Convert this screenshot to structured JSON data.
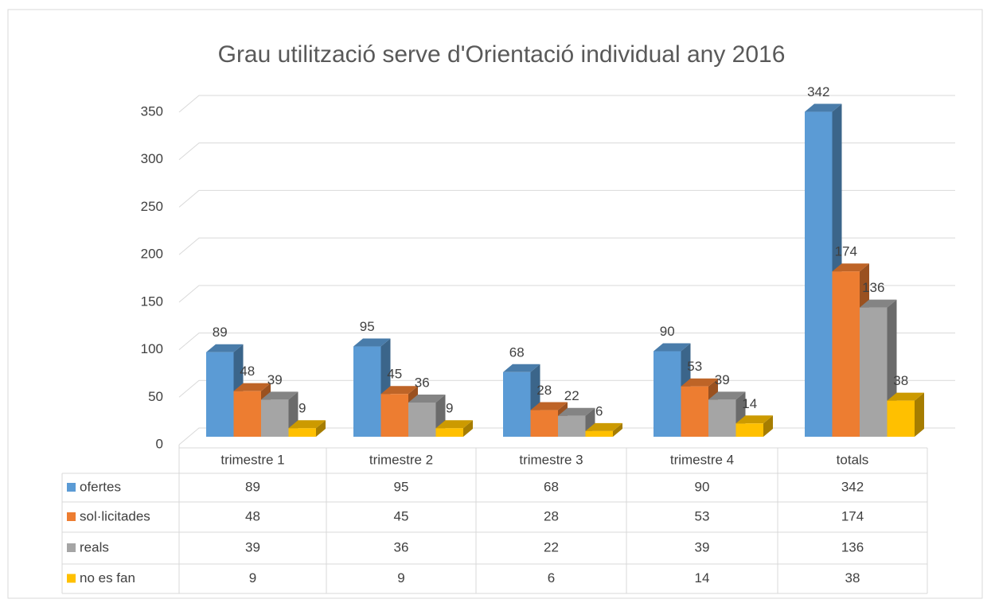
{
  "chart_data": {
    "type": "bar3d",
    "title": "Grau utilització serve d'Orientació individual any 2016",
    "categories": [
      "trimestre 1",
      "trimestre 2",
      "trimestre 3",
      "trimestre 4",
      "totals"
    ],
    "series": [
      {
        "name": "ofertes",
        "color": "#5b9bd5",
        "values": [
          89,
          95,
          68,
          90,
          342
        ]
      },
      {
        "name": "sol·licitades",
        "color": "#ed7d31",
        "values": [
          48,
          45,
          28,
          53,
          174
        ]
      },
      {
        "name": "reals",
        "color": "#a5a5a5",
        "values": [
          39,
          36,
          22,
          39,
          136
        ]
      },
      {
        "name": "no es fan",
        "color": "#ffc000",
        "values": [
          9,
          9,
          6,
          14,
          38
        ]
      }
    ],
    "ylim": [
      0,
      350
    ],
    "yticks": [
      0,
      50,
      100,
      150,
      200,
      250,
      300,
      350
    ],
    "grid": true,
    "data_table": true
  }
}
